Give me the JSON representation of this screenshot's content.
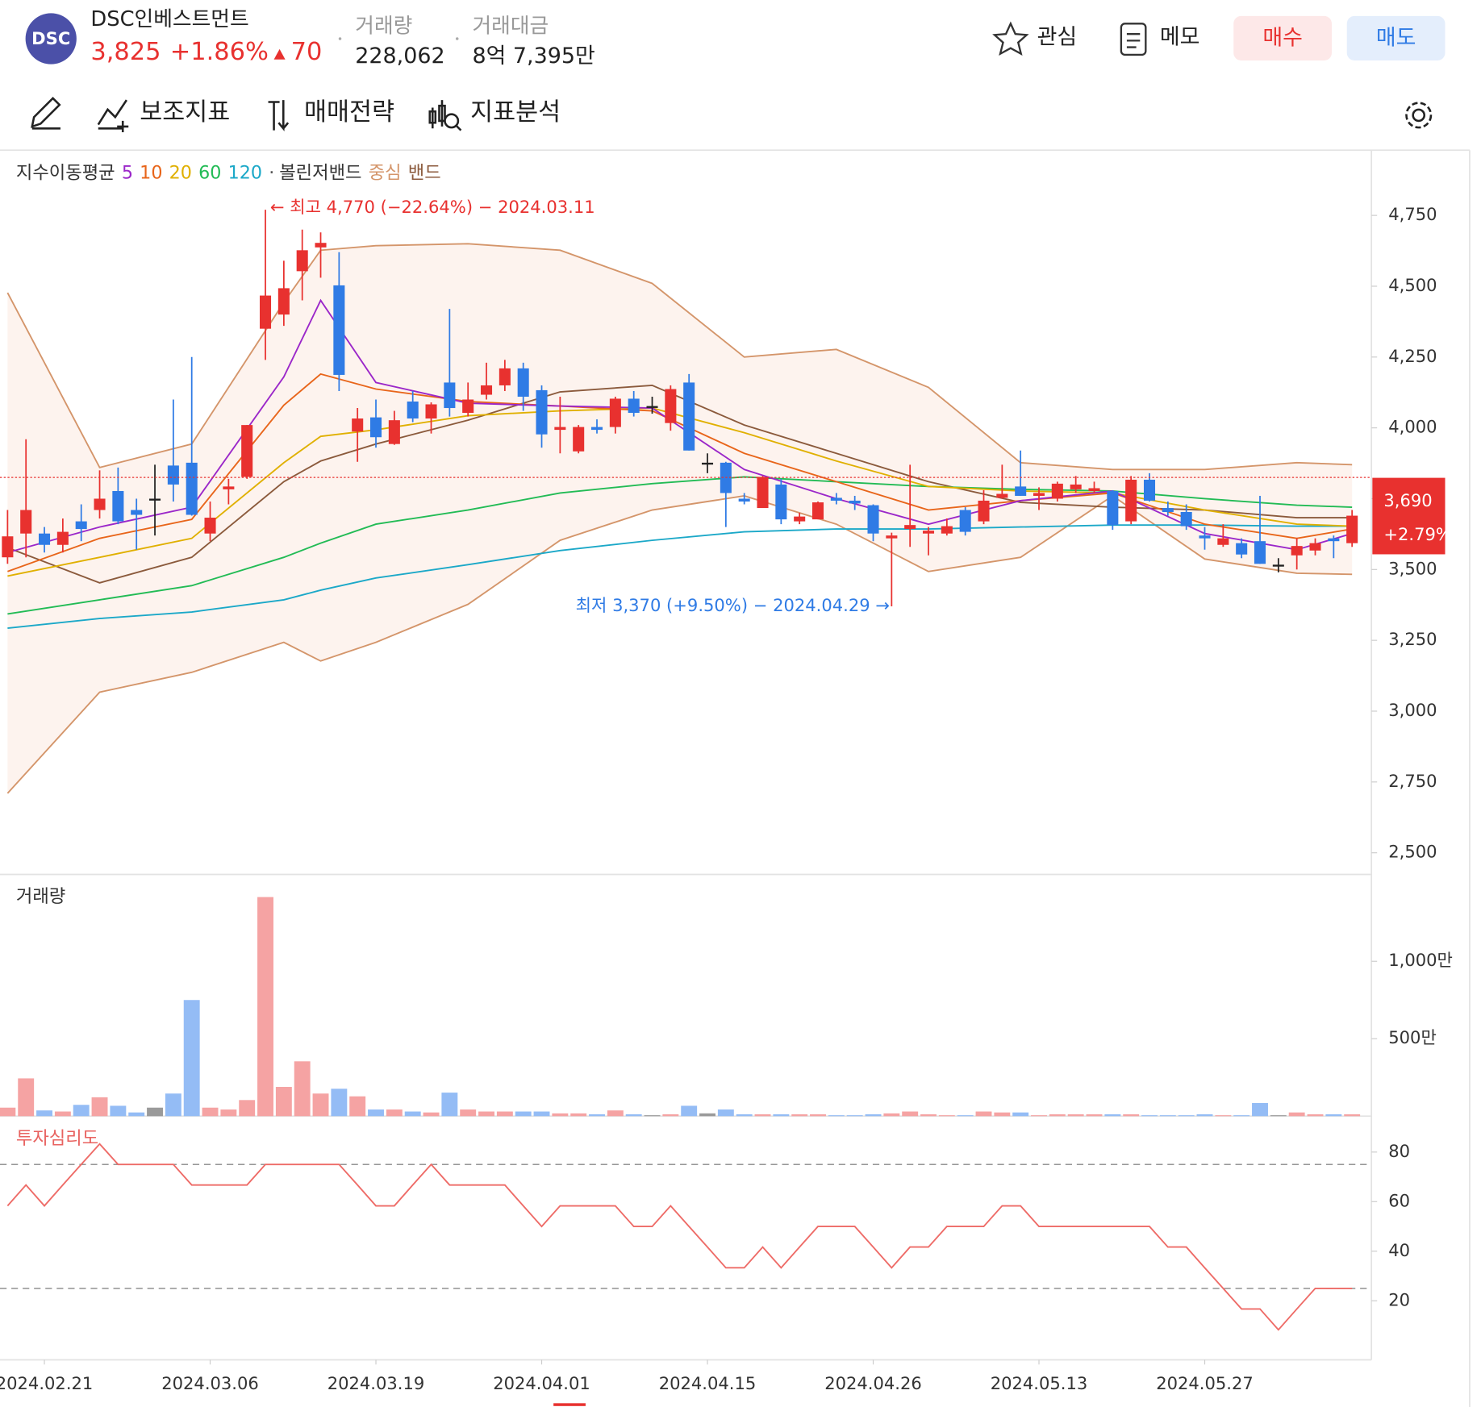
{
  "header": {
    "logo": "DSC",
    "name": "DSC인베스트먼트",
    "price": "3,825",
    "change_rate": "+1.86%",
    "change_amount": "70",
    "volume_label": "거래량",
    "volume": "228,062",
    "amount_label": "거래대금",
    "amount": "8억 7,395만",
    "actions": [
      "관심",
      "메모",
      "매수",
      "매도"
    ]
  },
  "toolbar": [
    "보조지표",
    "매매전략",
    "지표분석"
  ],
  "chart_data": [
    {
      "type": "candlestick",
      "legend_title": "지수이동평균",
      "legend_separator": "·",
      "bollinger_title": "볼린저밴드",
      "categories": [
        null,
        null,
        "2024.02.21",
        null,
        null,
        null,
        null,
        null,
        null,
        null,
        null,
        "2024.03.06",
        null,
        null,
        null,
        null,
        null,
        null,
        null,
        null,
        "2024.03.19",
        null,
        null,
        null,
        null,
        null,
        null,
        null,
        null,
        "2024.04.01",
        null,
        null,
        null,
        null,
        null,
        null,
        null,
        null,
        "2024.04.15",
        null,
        null,
        null,
        null,
        null,
        null,
        null,
        null,
        "2024.04.26",
        null,
        null,
        null,
        null,
        null,
        null,
        null,
        null,
        "2024.05.13",
        null,
        null,
        null,
        null,
        null,
        null,
        null,
        null,
        "2024.05.27",
        null,
        null,
        null,
        null,
        null,
        null,
        null,
        null
      ],
      "open": [
        3543,
        3627,
        3627,
        3587,
        3670,
        3710,
        3777,
        3710,
        3750,
        3867,
        3877,
        3627,
        3783,
        3827,
        4350,
        4400,
        4553,
        4637,
        4503,
        3987,
        4037,
        3943,
        4093,
        4033,
        4160,
        4053,
        4117,
        4150,
        4210,
        4133,
        3993,
        3917,
        4003,
        4003,
        4103,
        4077,
        4017,
        4160,
        3877,
        3877,
        3750,
        3717,
        3800,
        3670,
        3677,
        3753,
        3743,
        3727,
        3610,
        3643,
        3627,
        3627,
        3710,
        3670,
        3753,
        3793,
        3760,
        3750,
        3783,
        3777,
        3777,
        3670,
        3817,
        3717,
        3703,
        3620,
        3587,
        3593,
        3600,
        3517,
        3550,
        3567,
        3610,
        3593
      ],
      "high": [
        3710,
        3960,
        3650,
        3680,
        3730,
        3850,
        3860,
        3750,
        3870,
        4100,
        4250,
        3740,
        3820,
        4010,
        4770,
        4590,
        4700,
        4690,
        4620,
        4070,
        4100,
        4060,
        4130,
        4090,
        4420,
        4160,
        4230,
        4240,
        4230,
        4150,
        4110,
        4010,
        4030,
        4110,
        4130,
        4110,
        4150,
        4190,
        3910,
        3880,
        3770,
        3830,
        3820,
        3700,
        3740,
        3770,
        3760,
        3730,
        3630,
        3870,
        3650,
        3680,
        3720,
        3780,
        3870,
        3920,
        3790,
        3810,
        3830,
        3810,
        3780,
        3830,
        3840,
        3740,
        3730,
        3650,
        3660,
        3610,
        3760,
        3540,
        3610,
        3610,
        3620,
        3710
      ],
      "low": [
        3520,
        3543,
        3560,
        3560,
        3600,
        3680,
        3660,
        3570,
        3620,
        3740,
        3690,
        3600,
        3730,
        3820,
        4240,
        4360,
        4450,
        4530,
        4130,
        3880,
        3930,
        3940,
        4020,
        3980,
        4040,
        4040,
        4100,
        4130,
        4060,
        3930,
        3910,
        3910,
        3980,
        3980,
        4040,
        4050,
        3990,
        3920,
        3840,
        3650,
        3730,
        3720,
        3660,
        3660,
        3677,
        3730,
        3710,
        3600,
        3370,
        3580,
        3550,
        3620,
        3620,
        3660,
        3750,
        3760,
        3710,
        3740,
        3770,
        3770,
        3640,
        3660,
        3740,
        3690,
        3640,
        3570,
        3580,
        3540,
        3520,
        3490,
        3500,
        3550,
        3540,
        3580
      ],
      "close": [
        3617,
        3710,
        3587,
        3633,
        3643,
        3750,
        3670,
        3693,
        3750,
        3800,
        3693,
        3683,
        3793,
        4010,
        4467,
        4493,
        4627,
        4653,
        4187,
        4033,
        3967,
        4027,
        4033,
        4083,
        4070,
        4100,
        4150,
        4210,
        4110,
        3977,
        4003,
        4003,
        3993,
        4103,
        4053,
        4077,
        4137,
        3920,
        3877,
        3770,
        3740,
        3827,
        3677,
        3687,
        3737,
        3743,
        3733,
        3627,
        3620,
        3657,
        3637,
        3653,
        3633,
        3743,
        3767,
        3760,
        3770,
        3803,
        3800,
        3787,
        3657,
        3817,
        3743,
        3703,
        3653,
        3610,
        3610,
        3553,
        3520,
        3517,
        3583,
        3593,
        3600,
        3690
      ],
      "up_color": "#e8312f",
      "down_color": "#2f7be5",
      "flat_color": "#222222",
      "line_x": [
        0,
        5,
        10,
        15,
        17,
        20,
        25,
        30,
        35,
        40,
        45,
        50,
        55,
        60,
        65,
        70,
        73
      ],
      "ma": [
        {
          "name": "5",
          "color": "#9b27c9",
          "values": [
            3560,
            3650,
            3720,
            4180,
            4450,
            4160,
            4087,
            4077,
            4070,
            3853,
            3750,
            3660,
            3743,
            3777,
            3627,
            3570,
            3627
          ]
        },
        {
          "name": "10",
          "color": "#e8651a",
          "values": [
            3493,
            3610,
            3677,
            4080,
            4190,
            4137,
            4093,
            4077,
            4060,
            3910,
            3810,
            3710,
            3743,
            3770,
            3660,
            3610,
            3643
          ]
        },
        {
          "name": "20",
          "color": "#e0b000",
          "values": [
            3477,
            3543,
            3610,
            3877,
            3970,
            3993,
            4043,
            4060,
            4070,
            3983,
            3883,
            3793,
            3777,
            3770,
            3710,
            3660,
            3653
          ]
        },
        {
          "name": "60",
          "color": "#22bb55",
          "values": [
            3343,
            3393,
            3443,
            3543,
            3593,
            3660,
            3710,
            3770,
            3803,
            3827,
            3810,
            3793,
            3783,
            3777,
            3750,
            3727,
            3720
          ]
        },
        {
          "name": "120",
          "color": "#1ba8c8",
          "values": [
            3293,
            3327,
            3350,
            3393,
            3427,
            3470,
            3517,
            3567,
            3603,
            3633,
            3643,
            3643,
            3650,
            3657,
            3657,
            3653,
            3653
          ]
        }
      ],
      "bollinger": {
        "center": {
          "name": "중심",
          "color": "#8b5a3c",
          "values": [
            3577,
            3453,
            3543,
            3810,
            3883,
            3943,
            4027,
            4127,
            4150,
            4010,
            3910,
            3810,
            3737,
            3720,
            3710,
            3683,
            3683
          ]
        },
        "band": {
          "name": "밴드",
          "color": "#d4956a",
          "fill": "#fdf3ee",
          "upper": [
            4477,
            3860,
            3943,
            4443,
            4627,
            4643,
            4650,
            4627,
            4510,
            4250,
            4277,
            4143,
            3877,
            3853,
            3853,
            3877,
            3870
          ],
          "lower": [
            2710,
            3067,
            3137,
            3243,
            3177,
            3243,
            3377,
            3603,
            3710,
            3760,
            3660,
            3493,
            3543,
            3760,
            3537,
            3487,
            3483
          ]
        }
      },
      "high_annotation": "← 최고 4,770 (−22.64%) − 2024.03.11",
      "low_annotation": "최저 3,370 (+9.50%) − 2024.04.29 →",
      "current_price": 3825,
      "last_label": "3,690",
      "last_change": "+2.79%",
      "ylim": [
        2427,
        4977
      ],
      "yticks": [
        {
          "value": 4750,
          "label": "4,750"
        },
        {
          "value": 4500,
          "label": "4,500"
        },
        {
          "value": 4250,
          "label": "4,250"
        },
        {
          "value": 4000,
          "label": "4,000"
        },
        {
          "value": 3750,
          "label": "3,750"
        },
        {
          "value": 3500,
          "label": "3,500"
        },
        {
          "value": 3250,
          "label": "3,250"
        },
        {
          "value": 3000,
          "label": "3,000"
        },
        {
          "value": 2750,
          "label": "2,750"
        },
        {
          "value": 2500,
          "label": "2,500"
        }
      ]
    },
    {
      "type": "bar",
      "title": "거래량",
      "values": [
        55,
        244,
        37,
        30,
        73,
        122,
        67,
        24,
        55,
        146,
        750,
        55,
        43,
        104,
        1415,
        189,
        354,
        146,
        177,
        128,
        43,
        43,
        30,
        24,
        152,
        43,
        30,
        30,
        30,
        30,
        18,
        18,
        12,
        37,
        12,
        6,
        12,
        67,
        18,
        43,
        12,
        12,
        12,
        12,
        12,
        6,
        6,
        12,
        18,
        30,
        12,
        6,
        6,
        30,
        24,
        24,
        6,
        12,
        12,
        12,
        12,
        12,
        6,
        6,
        6,
        12,
        6,
        6,
        85,
        6,
        24,
        12,
        12,
        12
      ],
      "up_color": "#f5a3a3",
      "down_color": "#94bcf5",
      "flat_color": "#9a9a9a",
      "ylim": [
        0,
        1555
      ],
      "yticks": [
        {
          "value": 1000,
          "label": "1,000만"
        },
        {
          "value": 500,
          "label": "500만"
        }
      ]
    },
    {
      "type": "line",
      "title": "투자심리도",
      "color": "#ee6b67",
      "values": [
        58.3,
        66.7,
        58.3,
        66.7,
        75,
        83.3,
        75,
        75,
        75,
        75,
        66.7,
        66.7,
        66.7,
        66.7,
        75,
        75,
        75,
        75,
        75,
        66.7,
        58.3,
        58.3,
        66.7,
        75,
        66.7,
        66.7,
        66.7,
        66.7,
        58.3,
        50,
        58.3,
        58.3,
        58.3,
        58.3,
        50,
        50,
        58.3,
        50,
        41.7,
        33.3,
        33.3,
        41.7,
        33.3,
        41.7,
        50,
        50,
        50,
        41.7,
        33.3,
        41.7,
        41.7,
        50,
        50,
        50,
        58.3,
        58.3,
        50,
        50,
        50,
        50,
        50,
        50,
        50,
        41.7,
        41.7,
        33.3,
        25,
        16.7,
        16.7,
        8.3,
        16.7,
        25,
        25,
        25
      ],
      "reference_lines": [
        75,
        25
      ],
      "ylim": [
        -3.8,
        94.1
      ],
      "yticks": [
        80,
        60,
        40,
        20
      ]
    }
  ]
}
